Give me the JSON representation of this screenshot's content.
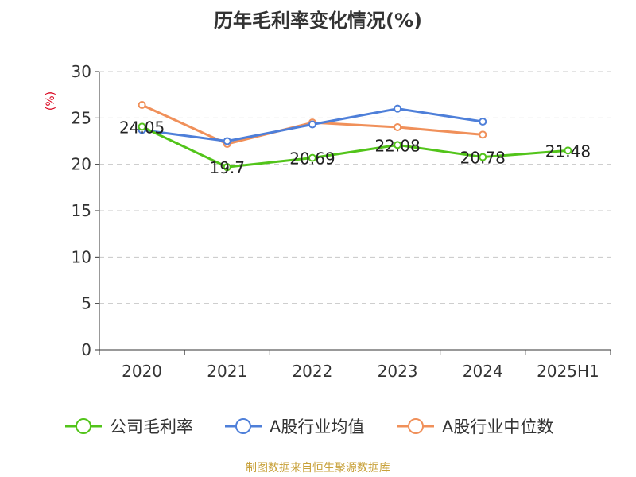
{
  "chart_data": {
    "type": "line",
    "title": "历年毛利率变化情况(%)",
    "ylabel": "(%)",
    "xlabel": "",
    "categories": [
      "2020",
      "2021",
      "2022",
      "2023",
      "2024",
      "2025H1"
    ],
    "ylim": [
      0,
      30
    ],
    "yticks": [
      0,
      5,
      10,
      15,
      20,
      25,
      30
    ],
    "grid": true,
    "legend_position": "bottom",
    "series": [
      {
        "name": "公司毛利率",
        "color": "#52c41a",
        "values": [
          24.05,
          19.7,
          20.69,
          22.08,
          20.78,
          21.48
        ],
        "show_labels": true
      },
      {
        "name": "A股行业均值",
        "color": "#4e7fd9",
        "values": [
          23.7,
          22.5,
          24.3,
          26.0,
          24.6,
          null
        ],
        "show_labels": false
      },
      {
        "name": "A股行业中位数",
        "color": "#f0905a",
        "values": [
          26.4,
          22.2,
          24.5,
          24.0,
          23.2,
          null
        ],
        "show_labels": false
      }
    ]
  },
  "source": "制图数据来自恒生聚源数据库"
}
